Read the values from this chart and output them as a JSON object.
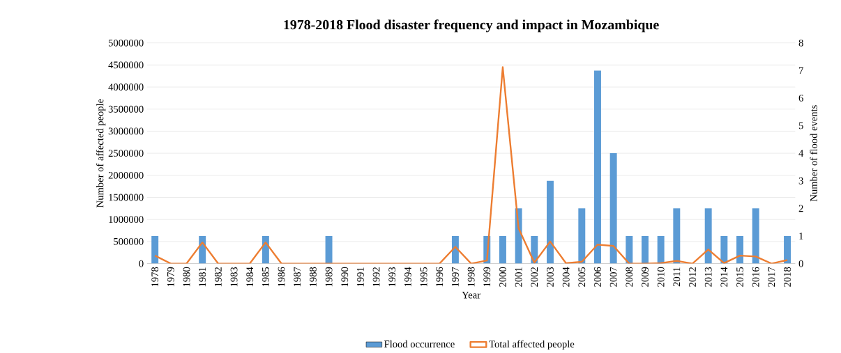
{
  "chart_data": {
    "type": "bar",
    "title": "1978-2018 Flood disaster frequency and impact in Mozambique",
    "xlabel": "Year",
    "ylabel": "Number of affected people",
    "y2label": "Number of flood events",
    "categories": [
      "1978",
      "1979",
      "1980",
      "1981",
      "1982",
      "1983",
      "1984",
      "1985",
      "1986",
      "1987",
      "1988",
      "1989",
      "1990",
      "1991",
      "1992",
      "1993",
      "1994",
      "1995",
      "1996",
      "1997",
      "1998",
      "1999",
      "2000",
      "2001",
      "2002",
      "2003",
      "2004",
      "2005",
      "2006",
      "2007",
      "2008",
      "2009",
      "2010",
      "2011",
      "2012",
      "2013",
      "2014",
      "2015",
      "2016",
      "2017",
      "2018"
    ],
    "series": [
      {
        "name": "Flood occurrence",
        "axis": "y2",
        "color": "#5b9bd5",
        "values": [
          1,
          0,
          0,
          1,
          0,
          0,
          0,
          1,
          0,
          0,
          0,
          1,
          0,
          0,
          0,
          0,
          0,
          0,
          0,
          1,
          0,
          1,
          1,
          2,
          1,
          3,
          0,
          2,
          7,
          4,
          1,
          1,
          1,
          2,
          0,
          2,
          1,
          1,
          2,
          0,
          1
        ]
      },
      {
        "name": "Total affected people",
        "type": "line",
        "axis": "y",
        "color": "#ed7d31",
        "values": [
          180000,
          0,
          0,
          480000,
          0,
          0,
          0,
          480000,
          0,
          0,
          0,
          0,
          0,
          0,
          0,
          0,
          0,
          0,
          0,
          380000,
          0,
          70000,
          4450000,
          800000,
          20000,
          500000,
          10000,
          40000,
          430000,
          400000,
          0,
          0,
          10000,
          60000,
          0,
          320000,
          10000,
          180000,
          160000,
          0,
          80000
        ]
      }
    ],
    "ylim": [
      0,
      5000000
    ],
    "yticks": [
      0,
      500000,
      1000000,
      1500000,
      2000000,
      2500000,
      3000000,
      3500000,
      4000000,
      4500000,
      5000000
    ],
    "y2lim": [
      0,
      8
    ],
    "y2ticks": [
      0,
      1,
      2,
      3,
      4,
      5,
      6,
      7,
      8
    ],
    "grid": "y",
    "legend": "bottom"
  }
}
